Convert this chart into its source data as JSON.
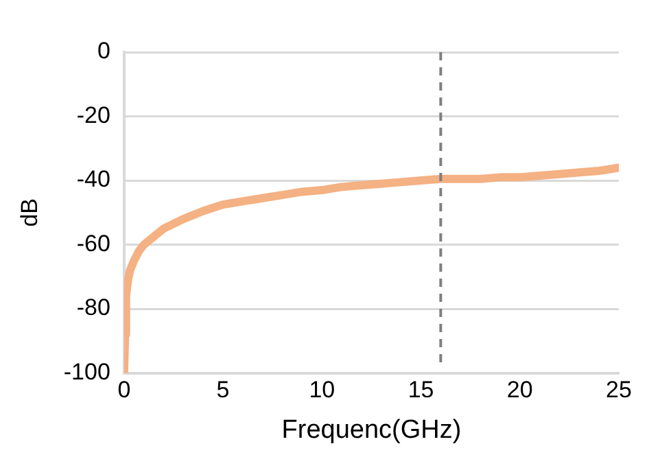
{
  "chart_data": {
    "type": "line",
    "xlabel": "Frequenc(GHz)",
    "ylabel": "dB",
    "x": [
      0,
      0.05,
      0.1,
      0.2,
      0.3,
      0.5,
      0.75,
      1,
      1.5,
      2,
      2.5,
      3,
      4,
      5,
      6,
      7,
      8,
      9,
      10,
      11,
      12,
      13,
      14,
      15,
      16,
      17,
      18,
      19,
      20,
      21,
      22,
      23,
      24,
      25
    ],
    "series": [
      {
        "color": "#f4b183",
        "values": [
          -100,
          -88,
          -76,
          -71,
          -68,
          -65,
          -62,
          -60,
          -57.5,
          -55,
          -53.5,
          -52,
          -49.5,
          -47.5,
          -46.5,
          -45.5,
          -44.5,
          -43.5,
          -43,
          -42,
          -41.5,
          -41,
          -40.5,
          -40,
          -39.5,
          -39.5,
          -39.5,
          -39,
          -39,
          -38.5,
          -38,
          -37.5,
          -37,
          -36
        ]
      }
    ],
    "xlim": [
      0,
      25
    ],
    "xticks": [
      0,
      5,
      10,
      15,
      20,
      25
    ],
    "ylim": [
      -100,
      0
    ],
    "yticks": [
      -100,
      -80,
      -60,
      -40,
      -20,
      0
    ],
    "grid": "y",
    "legend": false,
    "ref_lines": [
      {
        "axis": "x",
        "value": 16,
        "color": "#7f7f7f",
        "line_style": "dashed"
      }
    ]
  }
}
